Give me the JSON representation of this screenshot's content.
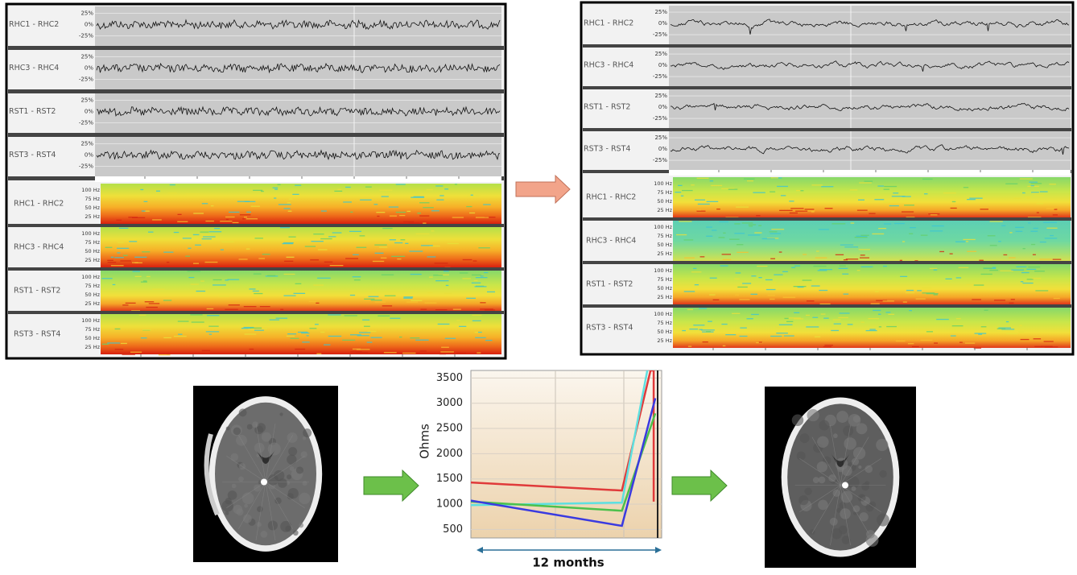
{
  "eeg": {
    "channels": [
      "RHC1 - RHC2",
      "RHC3 - RHC4",
      "RST1 - RST2",
      "RST3 - RST4"
    ],
    "amplitude_ticks": [
      "25%",
      "0%",
      "-25%"
    ],
    "frequency_ticks": [
      "100 Hz",
      "75 Hz",
      "50 Hz",
      "25 Hz"
    ]
  },
  "chart_data": {
    "type": "line",
    "y_label": "Ohms",
    "x_label": "12 months",
    "xlim": [
      0,
      12
    ],
    "ylim": [
      330,
      3650
    ],
    "yticks": [
      500,
      1000,
      1500,
      2000,
      2500,
      3000,
      3500
    ],
    "grid": true,
    "series": [
      {
        "color": "#e03a3a",
        "x": [
          0,
          9.5,
          11.3,
          11.5,
          11.5
        ],
        "values": [
          1430,
          1270,
          3650,
          3650,
          1050
        ]
      },
      {
        "color": "#5ee0e0",
        "x": [
          0,
          9.5,
          11.1
        ],
        "values": [
          980,
          1030,
          3650
        ]
      },
      {
        "color": "#4cc04c",
        "x": [
          0,
          9.5,
          11.6
        ],
        "values": [
          1050,
          870,
          2800
        ]
      },
      {
        "color": "#3a3ae0",
        "x": [
          0,
          9.5,
          11.6
        ],
        "values": [
          1070,
          570,
          3100
        ]
      }
    ]
  }
}
